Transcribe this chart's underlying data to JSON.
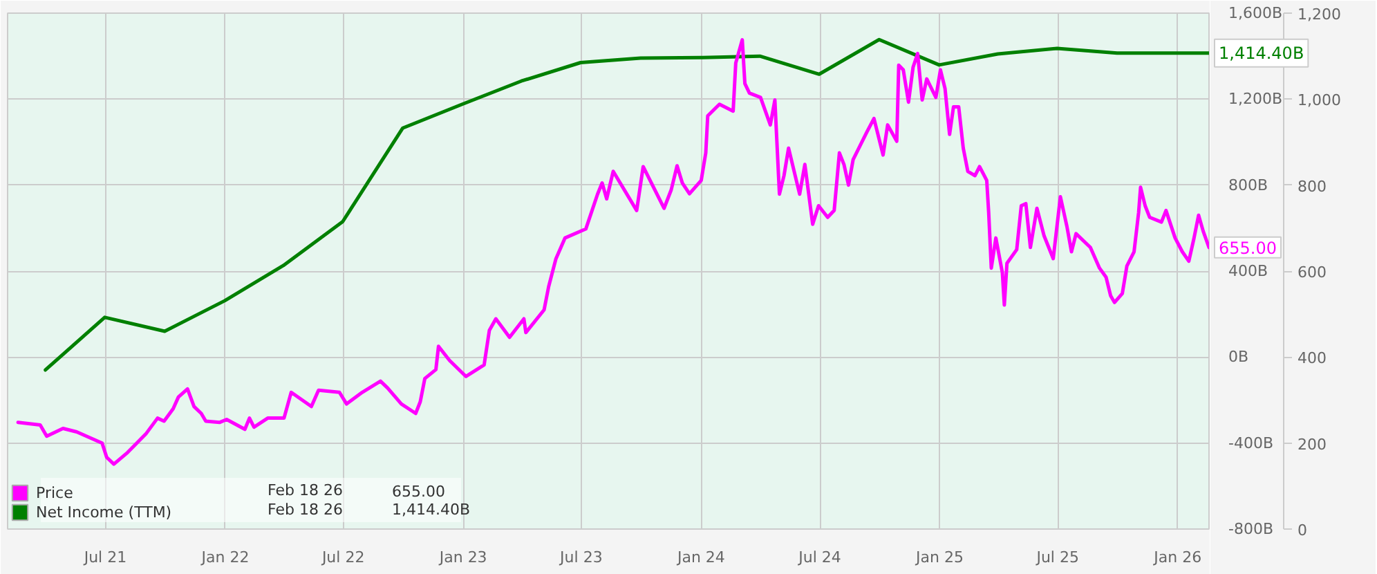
{
  "chart_data": {
    "type": "line",
    "xlim": [
      "2021-02-01",
      "2026-02-18"
    ],
    "xticks": [
      {
        "value": "2021-07-01",
        "label": "Jul 21"
      },
      {
        "value": "2022-01-01",
        "label": "Jan 22"
      },
      {
        "value": "2022-07-01",
        "label": "Jul 22"
      },
      {
        "value": "2023-01-01",
        "label": "Jan 23"
      },
      {
        "value": "2023-07-01",
        "label": "Jul 23"
      },
      {
        "value": "2024-01-01",
        "label": "Jan 24"
      },
      {
        "value": "2024-07-01",
        "label": "Jul 24"
      },
      {
        "value": "2025-01-01",
        "label": "Jan 25"
      },
      {
        "value": "2025-07-01",
        "label": "Jul 25"
      },
      {
        "value": "2026-01-01",
        "label": "Jan 26"
      }
    ],
    "ylim": [
      -800,
      1600
    ],
    "yticks": [
      {
        "value": -800,
        "label": "-800B"
      },
      {
        "value": -400,
        "label": "-400B"
      },
      {
        "value": 0,
        "label": "0B"
      },
      {
        "value": 400,
        "label": "400B"
      },
      {
        "value": 800,
        "label": "800B"
      },
      {
        "value": 1200,
        "label": "1,200B"
      },
      {
        "value": 1600,
        "label": "1,600B"
      }
    ],
    "y2lim": [
      0,
      1200
    ],
    "y2ticks": [
      0,
      200,
      400,
      600,
      800,
      {
        "value": 1000,
        "label": "1,000"
      },
      {
        "value": 1200,
        "label": "1,200"
      }
    ],
    "grid": true,
    "legend": "bottom left",
    "annotations": [
      "Feb 18 26",
      "Feb 18 26"
    ],
    "series": [
      {
        "name": "Price",
        "color": "#ff00ff",
        "axis": "y2",
        "x": [
          "2021-02-17",
          "2021-03-23",
          "2021-04-02",
          "2021-04-27",
          "2021-05-18",
          "2021-06-08",
          "2021-06-26",
          "2021-07-03",
          "2021-07-14",
          "2021-08-04",
          "2021-09-01",
          "2021-09-19",
          "2021-09-29",
          "2021-10-13",
          "2021-10-21",
          "2021-11-04",
          "2021-11-14",
          "2021-11-25",
          "2021-12-02",
          "2021-12-23",
          "2022-01-03",
          "2022-01-31",
          "2022-02-07",
          "2022-02-14",
          "2022-03-07",
          "2022-04-01",
          "2022-04-12",
          "2022-05-13",
          "2022-05-24",
          "2022-06-25",
          "2022-07-06",
          "2022-07-30",
          "2022-08-27",
          "2022-09-07",
          "2022-09-28",
          "2022-10-20",
          "2022-10-27",
          "2022-11-03",
          "2022-11-20",
          "2022-11-24",
          "2022-12-11",
          "2023-01-05",
          "2023-02-02",
          "2023-02-10",
          "2023-02-20",
          "2023-03-13",
          "2023-04-04",
          "2023-04-07",
          "2023-05-05",
          "2023-05-12",
          "2023-05-23",
          "2023-06-06",
          "2023-07-08",
          "2023-07-26",
          "2023-08-02",
          "2023-08-09",
          "2023-08-19",
          "2023-09-24",
          "2023-10-04",
          "2023-11-05",
          "2023-11-16",
          "2023-11-25",
          "2023-12-03",
          "2023-12-14",
          "2024-01-01",
          "2024-01-08",
          "2024-01-11",
          "2024-01-29",
          "2024-02-19",
          "2024-02-23",
          "2024-03-04",
          "2024-03-08",
          "2024-03-15",
          "2024-04-01",
          "2024-04-16",
          "2024-04-23",
          "2024-04-30",
          "2024-05-07",
          "2024-05-14",
          "2024-05-31",
          "2024-06-08",
          "2024-06-20",
          "2024-06-29",
          "2024-07-13",
          "2024-07-23",
          "2024-07-31",
          "2024-08-07",
          "2024-08-14",
          "2024-08-21",
          "2024-09-11",
          "2024-09-22",
          "2024-10-06",
          "2024-10-13",
          "2024-10-27",
          "2024-10-30",
          "2024-11-06",
          "2024-11-14",
          "2024-11-21",
          "2024-11-28",
          "2024-12-05",
          "2024-12-12",
          "2024-12-26",
          "2025-01-02",
          "2025-01-09",
          "2025-01-16",
          "2025-01-22",
          "2025-01-30",
          "2025-02-06",
          "2025-02-13",
          "2025-02-24",
          "2025-03-03",
          "2025-03-14",
          "2025-03-17",
          "2025-03-21",
          "2025-03-28",
          "2025-04-07",
          "2025-04-10",
          "2025-04-14",
          "2025-04-29",
          "2025-05-06",
          "2025-05-13",
          "2025-05-20",
          "2025-05-30",
          "2025-06-10",
          "2025-06-24",
          "2025-07-05",
          "2025-07-15",
          "2025-07-22",
          "2025-07-29",
          "2025-08-20",
          "2025-09-03",
          "2025-09-13",
          "2025-09-20",
          "2025-09-26",
          "2025-10-08",
          "2025-10-15",
          "2025-10-26",
          "2025-11-02",
          "2025-11-05",
          "2025-11-12",
          "2025-11-19",
          "2025-12-07",
          "2025-12-14",
          "2025-12-28",
          "2026-01-08",
          "2026-01-18",
          "2026-01-26",
          "2026-02-02",
          "2026-02-09",
          "2026-02-18"
        ],
        "values": [
          248,
          242,
          216,
          234,
          226,
          212,
          200,
          167,
          151,
          178,
          221,
          258,
          251,
          280,
          307,
          326,
          285,
          269,
          251,
          248,
          255,
          232,
          258,
          237,
          258,
          258,
          318,
          285,
          323,
          318,
          291,
          318,
          344,
          328,
          291,
          269,
          296,
          350,
          371,
          425,
          392,
          355,
          382,
          462,
          489,
          446,
          489,
          457,
          510,
          564,
          628,
          677,
          698,
          779,
          805,
          768,
          832,
          741,
          843,
          746,
          789,
          845,
          805,
          780,
          811,
          875,
          961,
          988,
          972,
          1084,
          1138,
          1036,
          1014,
          1004,
          940,
          998,
          779,
          822,
          886,
          779,
          848,
          709,
          752,
          725,
          741,
          875,
          848,
          800,
          859,
          923,
          955,
          870,
          940,
          902,
          1079,
          1068,
          993,
          1074,
          1106,
          998,
          1047,
          1004,
          1068,
          1025,
          918,
          982,
          982,
          886,
          832,
          822,
          843,
          811,
          736,
          607,
          677,
          596,
          521,
          618,
          650,
          752,
          757,
          655,
          746,
          682,
          629,
          773,
          704,
          645,
          687,
          655,
          607,
          586,
          543,
          527,
          548,
          612,
          645,
          736,
          795,
          752,
          725,
          714,
          741,
          677,
          645,
          623,
          677,
          730,
          693,
          655
        ],
        "value_labels": [
          null,
          null,
          null,
          null,
          null,
          null,
          null,
          null,
          null,
          null,
          null,
          null,
          null,
          null,
          null,
          null,
          null,
          null,
          null,
          null,
          null,
          null,
          null,
          null,
          null,
          null,
          null,
          null,
          null,
          null,
          null,
          null,
          null,
          null,
          null,
          null,
          null,
          null,
          null,
          null,
          null,
          null,
          null,
          null,
          null,
          null,
          null,
          null,
          null,
          null,
          null,
          null,
          null,
          null,
          null,
          null,
          null,
          null,
          null,
          null,
          null,
          null,
          null,
          null,
          null,
          null,
          null,
          null,
          null,
          null,
          null,
          null,
          null,
          null,
          null,
          null,
          null,
          null,
          null,
          null,
          null,
          null,
          null,
          null,
          null,
          null,
          null,
          null,
          null,
          null,
          null,
          null,
          null,
          null,
          null,
          null,
          null,
          null,
          null,
          null,
          null,
          null,
          null,
          null,
          null,
          null,
          null,
          null,
          null,
          null,
          null,
          null,
          null,
          null,
          null,
          null,
          null,
          null,
          null,
          null,
          null,
          null,
          null,
          null,
          null,
          null,
          null,
          null,
          null,
          null,
          null,
          null,
          null,
          null,
          null,
          null,
          null,
          null,
          null,
          null,
          null,
          null,
          null,
          null,
          null,
          null,
          null,
          null,
          null,
          "655.00"
        ]
      },
      {
        "name": "Net Income (TTM)",
        "color": "#008000",
        "x": [
          "2021-03-31",
          "2021-06-30",
          "2021-09-30",
          "2021-12-31",
          "2022-03-31",
          "2022-06-30",
          "2022-09-30",
          "2022-12-31",
          "2023-03-31",
          "2023-06-30",
          "2023-09-30",
          "2023-12-31",
          "2024-03-31",
          "2024-06-30",
          "2024-09-30",
          "2024-12-31",
          "2025-03-31",
          "2025-06-30",
          "2025-09-30",
          "2026-02-18"
        ],
        "values": [
          -60,
          185,
          120,
          262,
          426,
          630,
          1065,
          1177,
          1284,
          1370,
          1391,
          1393,
          1400,
          1316,
          1477,
          1359,
          1410,
          1436,
          1414.4,
          1414.4
        ],
        "value_labels": [
          null,
          null,
          null,
          null,
          null,
          null,
          null,
          null,
          null,
          null,
          null,
          null,
          null,
          null,
          null,
          null,
          null,
          null,
          null,
          "1,414.40B"
        ]
      }
    ]
  }
}
